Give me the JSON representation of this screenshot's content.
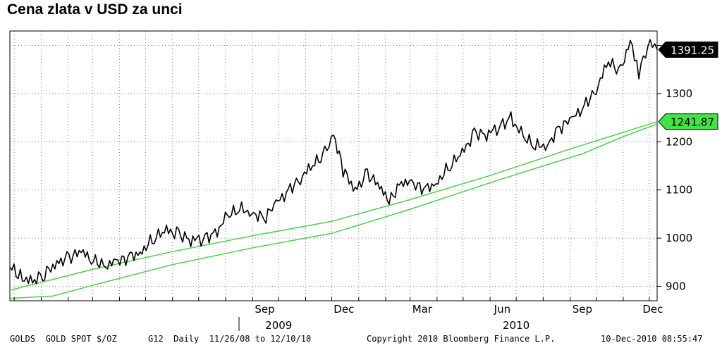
{
  "title": "Cena zlata v USD za unci",
  "chart_data": {
    "type": "line",
    "ylim": [
      870,
      1430
    ],
    "yticks": [
      900,
      1000,
      1100,
      1200,
      1300
    ],
    "months": [
      "Sep",
      "Dec",
      "Mar",
      "Jun",
      "Sep",
      "Dec"
    ],
    "years": [
      "2009",
      "2010"
    ],
    "grid": true,
    "series": [
      {
        "color": "#000000",
        "last_value": "1391.25",
        "points": [
          [
            "2008-11-26",
            940
          ],
          [
            "2008-12-08",
            920
          ],
          [
            "2008-12-22",
            910
          ],
          [
            "2009-01-05",
            925
          ],
          [
            "2009-01-19",
            950
          ],
          [
            "2009-02-02",
            960
          ],
          [
            "2009-02-16",
            970
          ],
          [
            "2009-03-02",
            955
          ],
          [
            "2009-03-16",
            945
          ],
          [
            "2009-03-30",
            950
          ],
          [
            "2009-04-13",
            960
          ],
          [
            "2009-04-27",
            975
          ],
          [
            "2009-05-11",
            1000
          ],
          [
            "2009-05-25",
            1015
          ],
          [
            "2009-06-08",
            1010
          ],
          [
            "2009-06-22",
            995
          ],
          [
            "2009-07-06",
            1000
          ],
          [
            "2009-07-20",
            1010
          ],
          [
            "2009-08-03",
            1045
          ],
          [
            "2009-08-17",
            1060
          ],
          [
            "2009-08-31",
            1055
          ],
          [
            "2009-09-14",
            1040
          ],
          [
            "2009-09-28",
            1070
          ],
          [
            "2009-10-12",
            1100
          ],
          [
            "2009-10-26",
            1125
          ],
          [
            "2009-11-09",
            1150
          ],
          [
            "2009-11-23",
            1175
          ],
          [
            "2009-12-03",
            1218
          ],
          [
            "2009-12-14",
            1140
          ],
          [
            "2009-12-28",
            1100
          ],
          [
            "2010-01-11",
            1135
          ],
          [
            "2010-01-25",
            1105
          ],
          [
            "2010-02-05",
            1075
          ],
          [
            "2010-02-19",
            1120
          ],
          [
            "2010-03-05",
            1110
          ],
          [
            "2010-03-19",
            1100
          ],
          [
            "2010-04-02",
            1120
          ],
          [
            "2010-04-16",
            1150
          ],
          [
            "2010-04-30",
            1175
          ],
          [
            "2010-05-14",
            1220
          ],
          [
            "2010-05-28",
            1215
          ],
          [
            "2010-06-11",
            1230
          ],
          [
            "2010-06-25",
            1250
          ],
          [
            "2010-07-09",
            1210
          ],
          [
            "2010-07-23",
            1190
          ],
          [
            "2010-08-06",
            1195
          ],
          [
            "2010-08-20",
            1230
          ],
          [
            "2010-09-03",
            1245
          ],
          [
            "2010-09-17",
            1275
          ],
          [
            "2010-10-01",
            1310
          ],
          [
            "2010-10-15",
            1365
          ],
          [
            "2010-10-29",
            1345
          ],
          [
            "2010-11-09",
            1415
          ],
          [
            "2010-11-19",
            1345
          ],
          [
            "2010-12-02",
            1405
          ],
          [
            "2010-12-10",
            1391.25
          ]
        ]
      },
      {
        "color": "#4cd04c",
        "last_value": "1241.87",
        "points": [
          [
            "2008-11-26",
            892
          ],
          [
            "2009-03-01",
            935
          ],
          [
            "2009-06-01",
            972
          ],
          [
            "2009-09-01",
            1005
          ],
          [
            "2009-12-01",
            1035
          ],
          [
            "2010-03-01",
            1080
          ],
          [
            "2010-06-01",
            1130
          ],
          [
            "2010-09-01",
            1185
          ],
          [
            "2010-12-10",
            1241.87
          ]
        ]
      },
      {
        "color": "#4cd04c",
        "points": [
          [
            "2008-11-26",
            875
          ],
          [
            "2009-01-15",
            880
          ],
          [
            "2009-03-01",
            902
          ],
          [
            "2009-06-01",
            945
          ],
          [
            "2009-09-01",
            980
          ],
          [
            "2009-12-01",
            1010
          ],
          [
            "2010-03-01",
            1060
          ],
          [
            "2010-06-01",
            1115
          ],
          [
            "2010-08-01",
            1150
          ],
          [
            "2010-09-15",
            1175
          ],
          [
            "2010-10-31",
            1210
          ],
          [
            "2010-12-10",
            1237
          ]
        ]
      }
    ]
  },
  "footer": {
    "ticker": "GOLDS  GOLD SPOT $/OZ",
    "params": "G12  Daily  11/26/08 to 12/10/10",
    "copyright": "Copyright 2010 Bloomberg Finance L.P.",
    "timestamp": "10-Dec-2010 08:55:47"
  }
}
